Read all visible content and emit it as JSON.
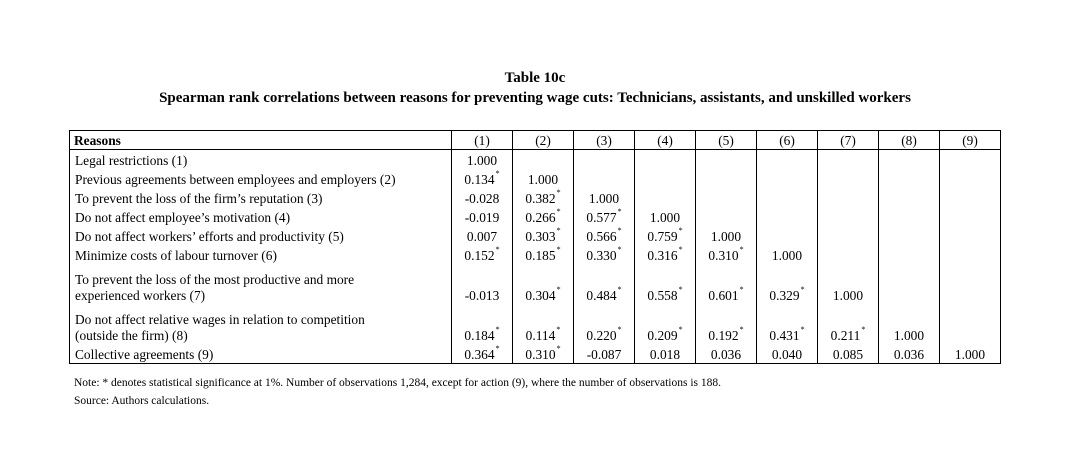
{
  "title": "Table 10c",
  "subtitle": "Spearman rank correlations between reasons for preventing wage cuts: Technicians, assistants, and unskilled workers",
  "header": {
    "reasons": "Reasons",
    "columns": [
      "(1)",
      "(2)",
      "(3)",
      "(4)",
      "(5)",
      "(6)",
      "(7)",
      "(8)",
      "(9)"
    ]
  },
  "rows": [
    {
      "label": [
        "Legal restrictions (1)"
      ],
      "cells": [
        {
          "v": "1.000",
          "s": ""
        },
        {
          "v": "",
          "s": ""
        },
        {
          "v": "",
          "s": ""
        },
        {
          "v": "",
          "s": ""
        },
        {
          "v": "",
          "s": ""
        },
        {
          "v": "",
          "s": ""
        },
        {
          "v": "",
          "s": ""
        },
        {
          "v": "",
          "s": ""
        },
        {
          "v": "",
          "s": ""
        }
      ]
    },
    {
      "label": [
        "Previous agreements between employees and employers (2)"
      ],
      "cells": [
        {
          "v": "0.134",
          "s": "*"
        },
        {
          "v": "1.000",
          "s": ""
        },
        {
          "v": "",
          "s": ""
        },
        {
          "v": "",
          "s": ""
        },
        {
          "v": "",
          "s": ""
        },
        {
          "v": "",
          "s": ""
        },
        {
          "v": "",
          "s": ""
        },
        {
          "v": "",
          "s": ""
        },
        {
          "v": "",
          "s": ""
        }
      ]
    },
    {
      "label": [
        "To prevent the loss of the firm’s reputation (3)"
      ],
      "cells": [
        {
          "v": "-0.028",
          "s": ""
        },
        {
          "v": "0.382",
          "s": "*"
        },
        {
          "v": "1.000",
          "s": ""
        },
        {
          "v": "",
          "s": ""
        },
        {
          "v": "",
          "s": ""
        },
        {
          "v": "",
          "s": ""
        },
        {
          "v": "",
          "s": ""
        },
        {
          "v": "",
          "s": ""
        },
        {
          "v": "",
          "s": ""
        }
      ]
    },
    {
      "label": [
        "Do not affect employee’s motivation (4)"
      ],
      "cells": [
        {
          "v": "-0.019",
          "s": ""
        },
        {
          "v": "0.266",
          "s": "*"
        },
        {
          "v": "0.577",
          "s": "*"
        },
        {
          "v": "1.000",
          "s": ""
        },
        {
          "v": "",
          "s": ""
        },
        {
          "v": "",
          "s": ""
        },
        {
          "v": "",
          "s": ""
        },
        {
          "v": "",
          "s": ""
        },
        {
          "v": "",
          "s": ""
        }
      ]
    },
    {
      "label": [
        "Do not affect workers’ efforts and productivity (5)"
      ],
      "cells": [
        {
          "v": "0.007",
          "s": ""
        },
        {
          "v": "0.303",
          "s": "*"
        },
        {
          "v": "0.566",
          "s": "*"
        },
        {
          "v": "0.759",
          "s": "*"
        },
        {
          "v": "1.000",
          "s": ""
        },
        {
          "v": "",
          "s": ""
        },
        {
          "v": "",
          "s": ""
        },
        {
          "v": "",
          "s": ""
        },
        {
          "v": "",
          "s": ""
        }
      ]
    },
    {
      "label": [
        "Minimize costs of labour turnover (6)"
      ],
      "cells": [
        {
          "v": "0.152",
          "s": "*"
        },
        {
          "v": "0.185",
          "s": "*"
        },
        {
          "v": "0.330",
          "s": "*"
        },
        {
          "v": "0.316",
          "s": "*"
        },
        {
          "v": "0.310",
          "s": "*"
        },
        {
          "v": "1.000",
          "s": ""
        },
        {
          "v": "",
          "s": ""
        },
        {
          "v": "",
          "s": ""
        },
        {
          "v": "",
          "s": ""
        }
      ]
    },
    {
      "label": [
        "To prevent the loss of the most productive and more",
        "experienced workers (7)"
      ],
      "cells": [
        {
          "v": "-0.013",
          "s": ""
        },
        {
          "v": "0.304",
          "s": "*"
        },
        {
          "v": "0.484",
          "s": "*"
        },
        {
          "v": "0.558",
          "s": "*"
        },
        {
          "v": "0.601",
          "s": "*"
        },
        {
          "v": "0.329",
          "s": "*"
        },
        {
          "v": "1.000",
          "s": ""
        },
        {
          "v": "",
          "s": ""
        },
        {
          "v": "",
          "s": ""
        }
      ]
    },
    {
      "label": [
        "Do not affect relative wages in relation to competition",
        "(outside the firm) (8)"
      ],
      "cells": [
        {
          "v": "0.184",
          "s": "*"
        },
        {
          "v": "0.114",
          "s": "*"
        },
        {
          "v": "0.220",
          "s": "*"
        },
        {
          "v": "0.209",
          "s": "*"
        },
        {
          "v": "0.192",
          "s": "*"
        },
        {
          "v": "0.431",
          "s": "*"
        },
        {
          "v": "0.211",
          "s": "*"
        },
        {
          "v": "1.000",
          "s": ""
        },
        {
          "v": "",
          "s": ""
        }
      ]
    },
    {
      "label": [
        "Collective agreements (9)"
      ],
      "cells": [
        {
          "v": "0.364",
          "s": "*"
        },
        {
          "v": "0.310",
          "s": "*"
        },
        {
          "v": "-0.087",
          "s": ""
        },
        {
          "v": "0.018",
          "s": ""
        },
        {
          "v": "0.036",
          "s": ""
        },
        {
          "v": "0.040",
          "s": ""
        },
        {
          "v": "0.085",
          "s": ""
        },
        {
          "v": "0.036",
          "s": ""
        },
        {
          "v": "1.000",
          "s": ""
        }
      ]
    }
  ],
  "notes": {
    "note": "Note: * denotes statistical significance at 1%. Number of observations 1,284, except for action (9), where the number of observations is 188.",
    "source": "Source: Authors calculations."
  }
}
